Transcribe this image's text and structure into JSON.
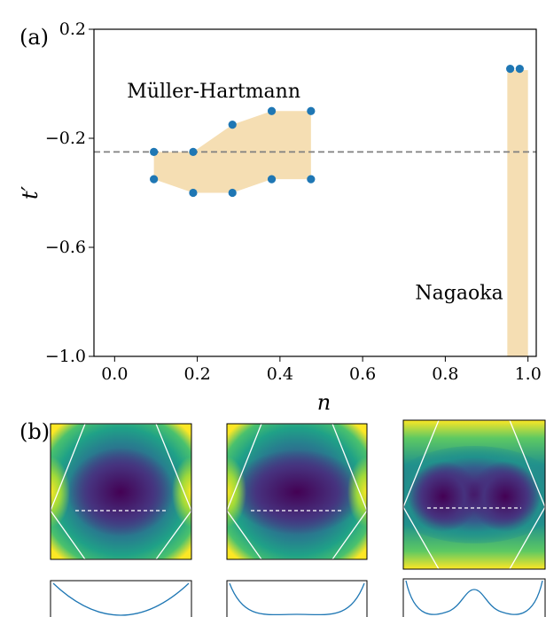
{
  "panel_labels": {
    "a": "(a)",
    "b": "(b)"
  },
  "colors": {
    "region": "#f5deb3",
    "marker": "#1f77b4",
    "dashed": "#808080",
    "axis": "#000000",
    "bz_line": "#ffffff",
    "dispersion_line": "#1f77b4"
  },
  "chart_data": [
    {
      "type": "scatter",
      "title": "",
      "xlabel": "n",
      "ylabel": "t′",
      "xlim": [
        -0.05,
        1.02
      ],
      "ylim": [
        -1.0,
        0.2
      ],
      "xticks": [
        0.0,
        0.2,
        0.4,
        0.6,
        0.8,
        1.0
      ],
      "xtick_labels": [
        "0.0",
        "0.2",
        "0.4",
        "0.6",
        "0.8",
        "1.0"
      ],
      "yticks": [
        0.2,
        -0.2,
        -0.6,
        -1.0
      ],
      "ytick_labels": [
        "0.2",
        "−0.2",
        "−0.6",
        "−1.0"
      ],
      "grid": false,
      "reference_line": {
        "y": -0.25,
        "style": "dashed"
      },
      "regions": [
        {
          "label": "Müller-Hartmann",
          "polygon": [
            [
              0.095,
              -0.25
            ],
            [
              0.19,
              -0.25
            ],
            [
              0.285,
              -0.15
            ],
            [
              0.38,
              -0.1
            ],
            [
              0.475,
              -0.1
            ],
            [
              0.475,
              -0.35
            ],
            [
              0.38,
              -0.35
            ],
            [
              0.285,
              -0.4
            ],
            [
              0.19,
              -0.4
            ],
            [
              0.095,
              -0.35
            ]
          ]
        },
        {
          "label": "Nagaoka",
          "polygon": [
            [
              0.95,
              0.05
            ],
            [
              1.0,
              0.05
            ],
            [
              1.0,
              -1.0
            ],
            [
              0.95,
              -1.0
            ]
          ]
        }
      ],
      "series": [
        {
          "points": [
            [
              0.095,
              -0.25
            ],
            [
              0.095,
              -0.35
            ],
            [
              0.19,
              -0.25
            ],
            [
              0.19,
              -0.4
            ],
            [
              0.285,
              -0.15
            ],
            [
              0.285,
              -0.4
            ],
            [
              0.38,
              -0.1
            ],
            [
              0.38,
              -0.35
            ],
            [
              0.475,
              -0.1
            ],
            [
              0.475,
              -0.35
            ],
            [
              0.957,
              0.055
            ],
            [
              0.98,
              0.055
            ]
          ]
        }
      ]
    },
    {
      "type": "heatmap",
      "title": "",
      "panels": [
        {
          "colormap": "viridis",
          "minimum_shape": "single"
        },
        {
          "colormap": "viridis",
          "minimum_shape": "flat"
        },
        {
          "colormap": "viridis",
          "minimum_shape": "double"
        }
      ]
    },
    {
      "type": "line",
      "title": "",
      "note_shape": [
        "single-well",
        "flat-bottom",
        "double-well"
      ]
    }
  ]
}
